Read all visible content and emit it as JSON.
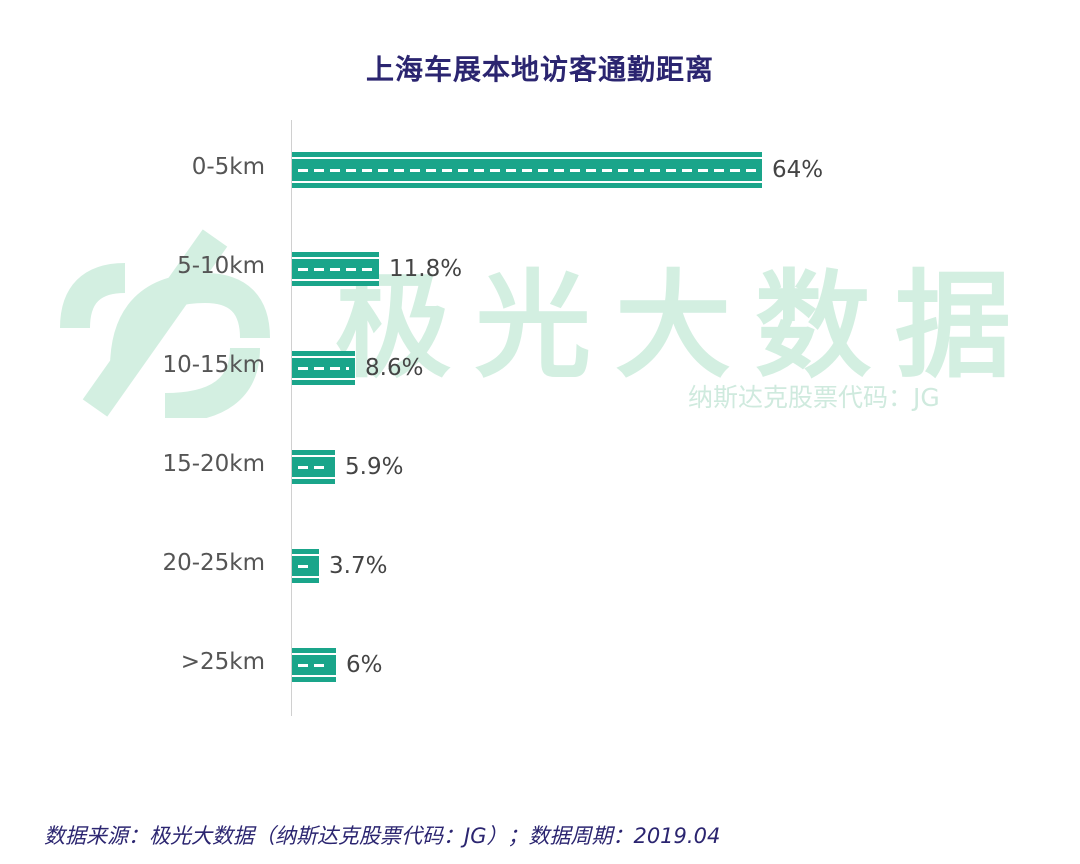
{
  "chart_data": {
    "type": "bar",
    "orientation": "horizontal",
    "title": "上海车展本地访客通勤距离",
    "categories": [
      "0-5km",
      "5-10km",
      "10-15km",
      "15-20km",
      "20-25km",
      ">25km"
    ],
    "values": [
      64,
      11.8,
      8.6,
      5.9,
      3.7,
      6
    ],
    "value_labels": [
      "64%",
      "11.8%",
      "8.6%",
      "5.9%",
      "3.7%",
      "6%"
    ],
    "unit": "%",
    "xlim": [
      0,
      64
    ],
    "bar_color": "#1aa58a"
  },
  "watermark": {
    "brand": "极光大数据",
    "ticker": "纳斯达克股票代码：JG"
  },
  "footer": {
    "source": "数据来源：极光大数据（纳斯达克股票代码：JG）；数据周期：2019.04"
  },
  "colors": {
    "title": "#2b2570",
    "bar": "#1aa58a",
    "watermark": "#d3efe1"
  }
}
